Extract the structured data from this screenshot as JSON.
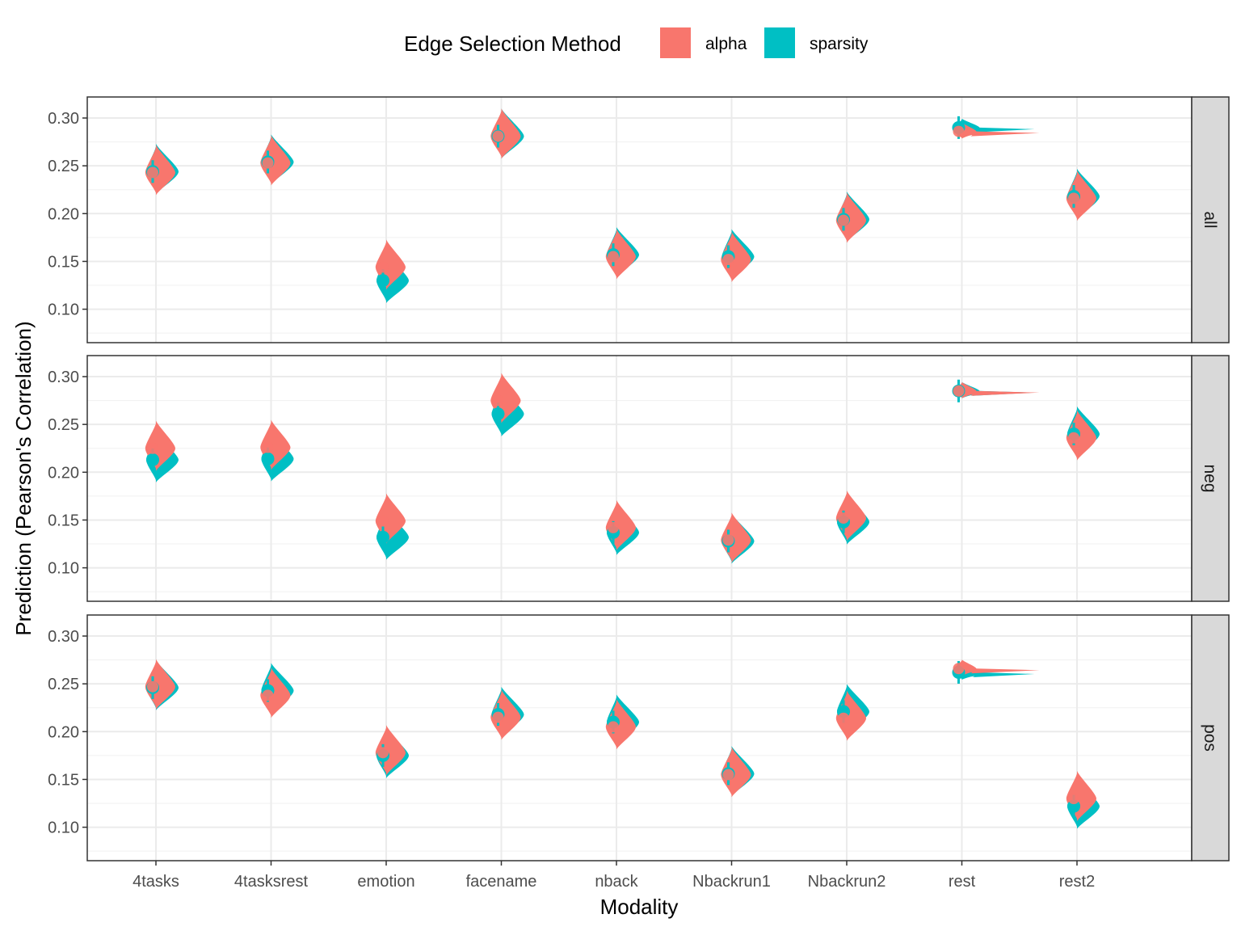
{
  "chart_data": {
    "type": "violin",
    "xlabel": "Modality",
    "ylabel": "Prediction (Pearson's Correlation)",
    "ylim": [
      0.065,
      0.322
    ],
    "y_ticks": [
      "0.10",
      "0.15",
      "0.20",
      "0.25",
      "0.30"
    ],
    "y_tick_values": [
      0.1,
      0.15,
      0.2,
      0.25,
      0.3
    ],
    "categories": [
      "4tasks",
      "4tasksrest",
      "emotion",
      "facename",
      "nback",
      "Nbackrun1",
      "Nbackrun2",
      "rest",
      "rest2"
    ],
    "legend": {
      "title": "Edge Selection Method",
      "position": "top",
      "items": [
        {
          "label": "alpha",
          "color": "#F8766D"
        },
        {
          "label": "sparsity",
          "color": "#00BFC4"
        }
      ]
    },
    "colors": {
      "alpha": "#F8766D",
      "sparsity": "#00BFC4"
    },
    "grid": true,
    "panels": [
      {
        "label": "all",
        "series": [
          {
            "name": "alpha",
            "medians": [
              0.243,
              0.253,
              0.144,
              0.281,
              0.155,
              0.152,
              0.193,
              0.286,
              0.216
            ]
          },
          {
            "name": "sparsity",
            "medians": [
              0.244,
              0.254,
              0.13,
              0.281,
              0.157,
              0.155,
              0.194,
              0.29,
              0.218
            ]
          }
        ]
      },
      {
        "label": "neg",
        "series": [
          {
            "name": "alpha",
            "medians": [
              0.225,
              0.226,
              0.149,
              0.275,
              0.142,
              0.129,
              0.152,
              0.285,
              0.236
            ]
          },
          {
            "name": "sparsity",
            "medians": [
              0.213,
              0.214,
              0.132,
              0.261,
              0.137,
              0.128,
              0.148,
              0.285,
              0.24
            ]
          }
        ]
      },
      {
        "label": "pos",
        "series": [
          {
            "name": "alpha",
            "medians": [
              0.247,
              0.238,
              0.178,
              0.215,
              0.205,
              0.155,
              0.214,
              0.266,
              0.13
            ]
          },
          {
            "name": "sparsity",
            "medians": [
              0.246,
              0.243,
              0.175,
              0.218,
              0.21,
              0.156,
              0.221,
              0.262,
              0.122
            ]
          }
        ]
      }
    ]
  }
}
